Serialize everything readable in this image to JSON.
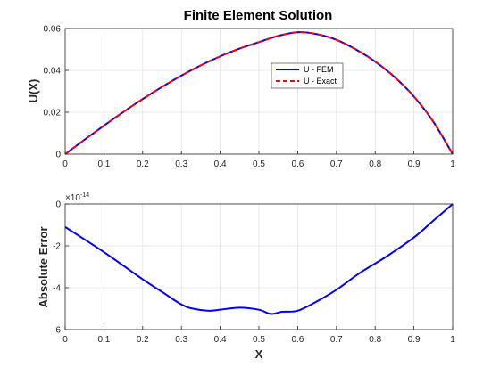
{
  "chart_data": [
    {
      "type": "line",
      "title": "Finite Element Solution",
      "xlabel": "",
      "ylabel": "U(X)",
      "xlim": [
        0,
        1
      ],
      "ylim": [
        0,
        0.06
      ],
      "xticks": [
        "0",
        "0.1",
        "0.2",
        "0.3",
        "0.4",
        "0.5",
        "0.6",
        "0.7",
        "0.8",
        "0.9",
        "1"
      ],
      "yticks": [
        "0",
        "0.02",
        "0.04",
        "0.06"
      ],
      "grid": true,
      "legend_position": "center-right",
      "series": [
        {
          "name": "U - FEM",
          "color": "#0000ff",
          "style": "solid",
          "x": [
            0,
            0.05,
            0.1,
            0.15,
            0.2,
            0.25,
            0.3,
            0.35,
            0.4,
            0.45,
            0.5,
            0.55,
            0.6,
            0.65,
            0.7,
            0.75,
            0.8,
            0.85,
            0.9,
            0.95,
            1.0
          ],
          "y": [
            0,
            0.0069,
            0.0136,
            0.0201,
            0.0263,
            0.0321,
            0.0375,
            0.0424,
            0.0467,
            0.0504,
            0.0535,
            0.0565,
            0.0582,
            0.0573,
            0.0546,
            0.05,
            0.0442,
            0.0368,
            0.0275,
            0.0155,
            0
          ]
        },
        {
          "name": "U - Exact",
          "color": "#ff0000",
          "style": "dashed",
          "x": [
            0,
            0.05,
            0.1,
            0.15,
            0.2,
            0.25,
            0.3,
            0.35,
            0.4,
            0.45,
            0.5,
            0.55,
            0.6,
            0.65,
            0.7,
            0.75,
            0.8,
            0.85,
            0.9,
            0.95,
            1.0
          ],
          "y": [
            0,
            0.0069,
            0.0136,
            0.0201,
            0.0263,
            0.0321,
            0.0375,
            0.0424,
            0.0467,
            0.0504,
            0.0535,
            0.0565,
            0.0582,
            0.0573,
            0.0546,
            0.05,
            0.0442,
            0.0368,
            0.0275,
            0.0155,
            0
          ]
        }
      ]
    },
    {
      "type": "line",
      "title": "",
      "xlabel": "X",
      "ylabel": "Absolute Error",
      "xlim": [
        0,
        1
      ],
      "ylim": [
        -6,
        0
      ],
      "y_exponent_label": "×10",
      "y_exponent": "-14",
      "xticks": [
        "0",
        "0.1",
        "0.2",
        "0.3",
        "0.4",
        "0.5",
        "0.6",
        "0.7",
        "0.8",
        "0.9",
        "1"
      ],
      "yticks": [
        "-6",
        "-4",
        "-2",
        "0"
      ],
      "grid": true,
      "series": [
        {
          "color": "#0000ff",
          "style": "solid",
          "x": [
            0,
            0.1,
            0.2,
            0.25,
            0.3,
            0.33,
            0.37,
            0.4,
            0.45,
            0.5,
            0.53,
            0.56,
            0.6,
            0.65,
            0.7,
            0.76,
            0.83,
            0.9,
            0.95,
            1.0
          ],
          "y": [
            -1.1,
            -2.3,
            -3.6,
            -4.2,
            -4.8,
            -5.0,
            -5.1,
            -5.05,
            -4.95,
            -5.05,
            -5.25,
            -5.15,
            -5.1,
            -4.65,
            -4.1,
            -3.3,
            -2.5,
            -1.6,
            -0.8,
            0
          ]
        }
      ]
    }
  ]
}
